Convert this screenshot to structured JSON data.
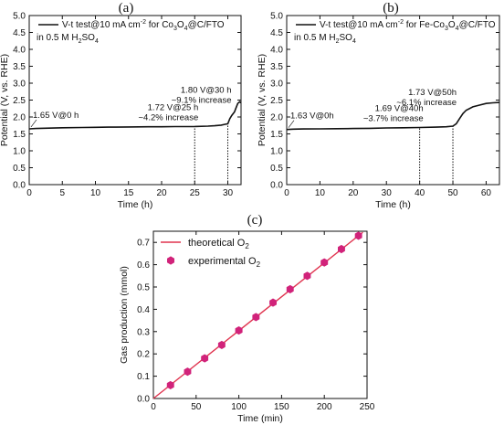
{
  "chart_data": [
    {
      "panel": "(a)",
      "type": "line",
      "xlabel": "Time (h)",
      "ylabel": "Potential (V, vs. RHE)",
      "xlim": [
        0,
        32
      ],
      "ylim": [
        0,
        5.0
      ],
      "xticks": [
        0,
        5,
        10,
        15,
        20,
        25,
        30
      ],
      "yticks": [
        "0.0",
        "0.5",
        "1.0",
        "1.5",
        "2.0",
        "2.5",
        "3.0",
        "3.5",
        "4.0",
        "4.5",
        "5.0"
      ],
      "legend": [
        "V-t test@10 mA cm",
        "-2",
        " for Co",
        "3",
        "O",
        "4",
        "@C/FTO"
      ],
      "legend2": [
        "in 0.5 M H",
        "2",
        "SO",
        "4"
      ],
      "series": [
        {
          "x": [
            0,
            1,
            3,
            5,
            8,
            10,
            12,
            15,
            18,
            20,
            22,
            25,
            27,
            28,
            29,
            29.5,
            30,
            30.3,
            30.6,
            31.0,
            31.2,
            31.5,
            31.8,
            32
          ],
          "y": [
            1.65,
            1.66,
            1.67,
            1.68,
            1.69,
            1.695,
            1.7,
            1.705,
            1.71,
            1.712,
            1.715,
            1.72,
            1.73,
            1.74,
            1.76,
            1.78,
            1.8,
            1.95,
            2.05,
            2.15,
            2.25,
            2.4,
            2.45,
            2.42
          ]
        }
      ],
      "markers": [
        {
          "x": 25,
          "y": 1.72,
          "text": [
            "1.72 V@25 h",
            "~4.2% increase"
          ]
        },
        {
          "x": 30,
          "y": 1.8,
          "text": [
            "1.80 V@30 h",
            "~9.1% increase"
          ]
        }
      ],
      "start_label": "1.65 V@0 h"
    },
    {
      "panel": "(b)",
      "type": "line",
      "xlabel": "Time (h)",
      "ylabel": "Potential (V, vs. RHE)",
      "xlim": [
        0,
        64
      ],
      "ylim": [
        0,
        5.0
      ],
      "xticks": [
        0,
        10,
        20,
        30,
        40,
        50,
        60
      ],
      "yticks": [
        "0.0",
        "0.5",
        "1.0",
        "1.5",
        "2.0",
        "2.5",
        "3.0",
        "3.5",
        "4.0",
        "4.5",
        "5.0"
      ],
      "legend": [
        "V-t test@10 mA cm",
        "-2",
        " for Fe-Co",
        "3",
        "O",
        "4",
        "@C/FTO"
      ],
      "legend2": [
        "in 0.5 M H",
        "2",
        "SO",
        "4"
      ],
      "series": [
        {
          "x": [
            0,
            2,
            5,
            10,
            15,
            20,
            25,
            30,
            35,
            40,
            45,
            48,
            50,
            51,
            52,
            53,
            54,
            56,
            58,
            60,
            62,
            64
          ],
          "y": [
            1.63,
            1.64,
            1.645,
            1.65,
            1.655,
            1.66,
            1.665,
            1.675,
            1.68,
            1.69,
            1.7,
            1.71,
            1.73,
            1.8,
            1.95,
            2.1,
            2.2,
            2.3,
            2.35,
            2.4,
            2.42,
            2.43
          ]
        }
      ],
      "markers": [
        {
          "x": 40,
          "y": 1.69,
          "text": [
            "1.69 V@40h",
            "~3.7% increase"
          ]
        },
        {
          "x": 50,
          "y": 1.73,
          "text": [
            "1.73 V@50h",
            "~6.1% increase"
          ]
        }
      ],
      "start_label": "1.63 V@0h"
    },
    {
      "panel": "(c)",
      "type": "scatter",
      "xlabel": "Time (min)",
      "ylabel": "Gas production (mmol)",
      "xlim": [
        0,
        250
      ],
      "ylim": [
        0,
        0.75
      ],
      "xticks": [
        0,
        50,
        100,
        150,
        200,
        250
      ],
      "yticks": [
        "0.0",
        "0.1",
        "0.2",
        "0.3",
        "0.4",
        "0.5",
        "0.6",
        "0.7"
      ],
      "line_name": [
        "theoretical O",
        "2"
      ],
      "points_name": [
        "experimental O",
        "2"
      ],
      "theoretical": {
        "x": [
          0,
          245
        ],
        "y": [
          0,
          0.745
        ]
      },
      "experimental": {
        "x": [
          20,
          40,
          60,
          80,
          100,
          120,
          140,
          160,
          180,
          200,
          220,
          240
        ],
        "y": [
          0.06,
          0.12,
          0.18,
          0.24,
          0.305,
          0.365,
          0.43,
          0.49,
          0.55,
          0.61,
          0.67,
          0.73
        ]
      }
    }
  ],
  "colors": {
    "axis": "#111111",
    "line": "#111111",
    "theory": "#e0344f",
    "points": "#d1237a"
  }
}
